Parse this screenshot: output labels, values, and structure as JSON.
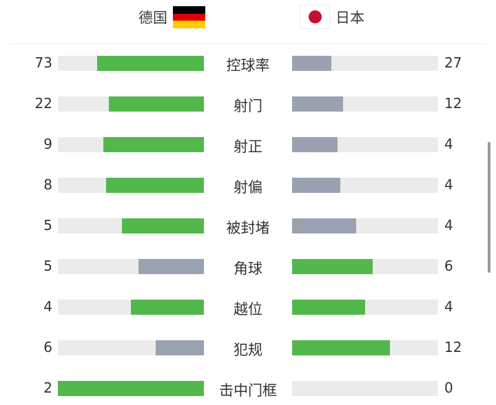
{
  "header": {
    "home_team": "德国",
    "away_team": "日本",
    "home_flag_colors": [
      "#000000",
      "#dd0000",
      "#ffce00"
    ],
    "away_flag_colors": [
      "#ffffff",
      "#c8102e"
    ]
  },
  "colors": {
    "leader": "#53b84b",
    "trailer": "#9aa2b2",
    "track": "#ebebeb"
  },
  "stats": [
    {
      "label": "控球率",
      "home": "73",
      "away": "27",
      "home_fill": 0.73,
      "away_fill": 0.27,
      "home_color": "#53b84b",
      "away_color": "#9aa2b2"
    },
    {
      "label": "射门",
      "home": "22",
      "away": "12",
      "home_fill": 0.65,
      "away_fill": 0.35,
      "home_color": "#53b84b",
      "away_color": "#9aa2b2"
    },
    {
      "label": "射正",
      "home": "9",
      "away": "4",
      "home_fill": 0.69,
      "away_fill": 0.31,
      "home_color": "#53b84b",
      "away_color": "#9aa2b2"
    },
    {
      "label": "射偏",
      "home": "8",
      "away": "4",
      "home_fill": 0.67,
      "away_fill": 0.33,
      "home_color": "#53b84b",
      "away_color": "#9aa2b2"
    },
    {
      "label": "被封堵",
      "home": "5",
      "away": "4",
      "home_fill": 0.56,
      "away_fill": 0.44,
      "home_color": "#53b84b",
      "away_color": "#9aa2b2"
    },
    {
      "label": "角球",
      "home": "5",
      "away": "6",
      "home_fill": 0.45,
      "away_fill": 0.55,
      "home_color": "#9aa2b2",
      "away_color": "#53b84b"
    },
    {
      "label": "越位",
      "home": "4",
      "away": "4",
      "home_fill": 0.5,
      "away_fill": 0.5,
      "home_color": "#53b84b",
      "away_color": "#53b84b"
    },
    {
      "label": "犯规",
      "home": "6",
      "away": "12",
      "home_fill": 0.33,
      "away_fill": 0.67,
      "home_color": "#9aa2b2",
      "away_color": "#53b84b"
    },
    {
      "label": "击中门框",
      "home": "2",
      "away": "0",
      "home_fill": 1.0,
      "away_fill": 0.0,
      "home_color": "#53b84b",
      "away_color": "#9aa2b2"
    }
  ]
}
